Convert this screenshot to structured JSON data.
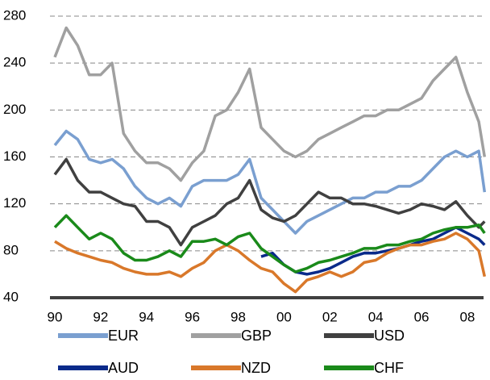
{
  "chart_data": {
    "type": "line",
    "x": [
      1990,
      1990.5,
      1991,
      1991.5,
      1992,
      1992.5,
      1993,
      1993.5,
      1994,
      1994.5,
      1995,
      1995.5,
      1996,
      1996.5,
      1997,
      1997.5,
      1998,
      1998.5,
      1999,
      1999.5,
      2000,
      2000.5,
      2001,
      2001.5,
      2002,
      2002.5,
      2003,
      2003.5,
      2004,
      2004.5,
      2005,
      2005.5,
      2006,
      2006.5,
      2007,
      2007.5,
      2008,
      2008.5,
      2008.75
    ],
    "series": [
      {
        "name": "EUR",
        "color": "#7a9fd0",
        "values": [
          170,
          182,
          175,
          158,
          155,
          158,
          150,
          135,
          125,
          120,
          125,
          118,
          135,
          140,
          140,
          140,
          145,
          158,
          125,
          115,
          105,
          95,
          105,
          110,
          115,
          120,
          125,
          125,
          130,
          130,
          135,
          135,
          140,
          150,
          160,
          165,
          160,
          165,
          130
        ]
      },
      {
        "name": "GBP",
        "color": "#a0a0a0",
        "values": [
          245,
          270,
          255,
          230,
          230,
          240,
          180,
          165,
          155,
          155,
          150,
          140,
          155,
          165,
          195,
          200,
          215,
          235,
          185,
          175,
          165,
          160,
          165,
          175,
          180,
          185,
          190,
          195,
          195,
          200,
          200,
          205,
          210,
          225,
          235,
          245,
          215,
          190,
          160
        ]
      },
      {
        "name": "USD",
        "color": "#404040",
        "values": [
          145,
          158,
          140,
          130,
          130,
          125,
          120,
          118,
          105,
          105,
          100,
          85,
          100,
          105,
          110,
          120,
          125,
          140,
          115,
          108,
          105,
          110,
          120,
          130,
          125,
          125,
          120,
          120,
          118,
          115,
          112,
          115,
          120,
          118,
          115,
          122,
          110,
          100,
          105
        ]
      },
      {
        "name": "AUD",
        "color": "#0a2a8a",
        "values": [
          null,
          null,
          null,
          null,
          null,
          null,
          null,
          null,
          null,
          null,
          null,
          null,
          null,
          null,
          null,
          null,
          null,
          null,
          75,
          78,
          68,
          62,
          60,
          62,
          65,
          70,
          75,
          78,
          78,
          80,
          82,
          85,
          88,
          90,
          95,
          100,
          95,
          90,
          85
        ]
      },
      {
        "name": "NZD",
        "color": "#d9782a",
        "values": [
          88,
          82,
          78,
          75,
          72,
          70,
          65,
          62,
          60,
          60,
          62,
          58,
          65,
          70,
          80,
          85,
          80,
          72,
          65,
          62,
          52,
          45,
          55,
          58,
          62,
          58,
          62,
          70,
          72,
          78,
          82,
          85,
          85,
          88,
          90,
          95,
          90,
          80,
          58
        ]
      },
      {
        "name": "CHF",
        "color": "#1a8a1a",
        "values": [
          100,
          110,
          100,
          90,
          95,
          90,
          78,
          72,
          72,
          75,
          80,
          75,
          88,
          88,
          90,
          85,
          92,
          95,
          82,
          75,
          68,
          62,
          65,
          70,
          72,
          75,
          78,
          82,
          82,
          85,
          85,
          88,
          90,
          95,
          98,
          100,
          100,
          102,
          95
        ]
      }
    ],
    "xlim": [
      1990,
      2008.75
    ],
    "xticks": [
      {
        "value": 1990,
        "label": "90"
      },
      {
        "value": 1992,
        "label": "92"
      },
      {
        "value": 1994,
        "label": "94"
      },
      {
        "value": 1996,
        "label": "96"
      },
      {
        "value": 1998,
        "label": "98"
      },
      {
        "value": 2000,
        "label": "00"
      },
      {
        "value": 2002,
        "label": "02"
      },
      {
        "value": 2004,
        "label": "04"
      },
      {
        "value": 2006,
        "label": "06"
      },
      {
        "value": 2008,
        "label": "08"
      }
    ],
    "ylim": [
      40,
      280
    ],
    "yticks": [
      40,
      80,
      120,
      160,
      200,
      240,
      280
    ],
    "grid": true
  }
}
